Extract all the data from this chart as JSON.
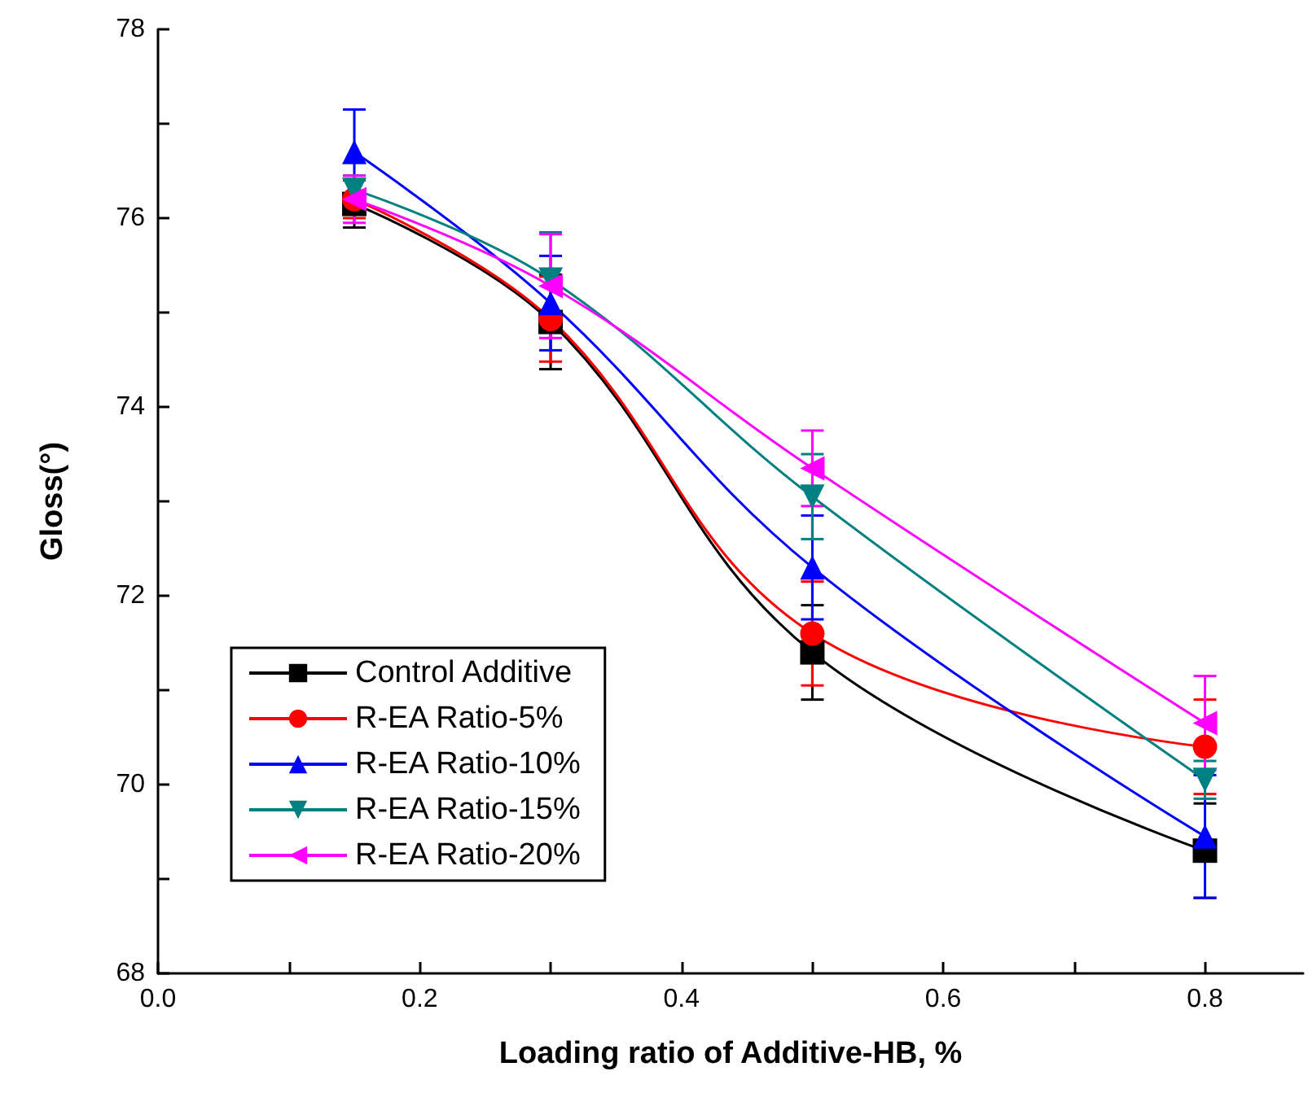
{
  "chart_data": {
    "type": "line",
    "xlabel": "Loading ratio of Additive-HB, %",
    "ylabel": "Gloss(°)",
    "x": [
      0.15,
      0.3,
      0.5,
      0.8
    ],
    "series": [
      {
        "name": "Control Additive",
        "color": "#000000",
        "marker": "square",
        "values": [
          76.15,
          74.9,
          71.4,
          69.3
        ],
        "errors": [
          0.25,
          0.5,
          0.5,
          0.5
        ]
      },
      {
        "name": "R-EA Ratio-5%",
        "color": "#ff0000",
        "marker": "circle",
        "values": [
          76.2,
          74.93,
          71.6,
          70.4
        ],
        "errors": [
          0.2,
          0.45,
          0.55,
          0.5
        ]
      },
      {
        "name": "R-EA Ratio-10%",
        "color": "#0000ff",
        "marker": "triangle",
        "values": [
          76.7,
          75.1,
          72.3,
          69.45
        ],
        "errors": [
          0.45,
          0.5,
          0.55,
          0.65
        ]
      },
      {
        "name": "R-EA Ratio-15%",
        "color": "#008080",
        "marker": "triangle-down",
        "values": [
          76.3,
          75.35,
          73.05,
          70.05
        ],
        "errors": [
          0.15,
          0.5,
          0.45,
          0.2
        ]
      },
      {
        "name": "R-EA Ratio-20%",
        "color": "#ff00ff",
        "marker": "triangle-left",
        "values": [
          76.2,
          75.28,
          73.35,
          70.65
        ],
        "errors": [
          0.25,
          0.55,
          0.4,
          0.5
        ]
      }
    ],
    "xlim": [
      0,
      0.875
    ],
    "xticks": [
      {
        "value": 0,
        "label": "0.0"
      },
      {
        "value": 0.1,
        "label": null
      },
      {
        "value": 0.2,
        "label": "0.2"
      },
      {
        "value": 0.3,
        "label": null
      },
      {
        "value": 0.4,
        "label": "0.4"
      },
      {
        "value": 0.5,
        "label": null
      },
      {
        "value": 0.6,
        "label": "0.6"
      },
      {
        "value": 0.7,
        "label": null
      },
      {
        "value": 0.8,
        "label": "0.8"
      }
    ],
    "ylim": [
      68,
      78
    ],
    "yticks": [
      68,
      {
        "value": 69,
        "label": null
      },
      70,
      {
        "value": 71,
        "label": null
      },
      72,
      {
        "value": 73,
        "label": null
      },
      74,
      {
        "value": 75,
        "label": null
      },
      76,
      {
        "value": 77,
        "label": null
      },
      78
    ],
    "grid": false,
    "legend": "bottom left",
    "line_style": "solid"
  }
}
